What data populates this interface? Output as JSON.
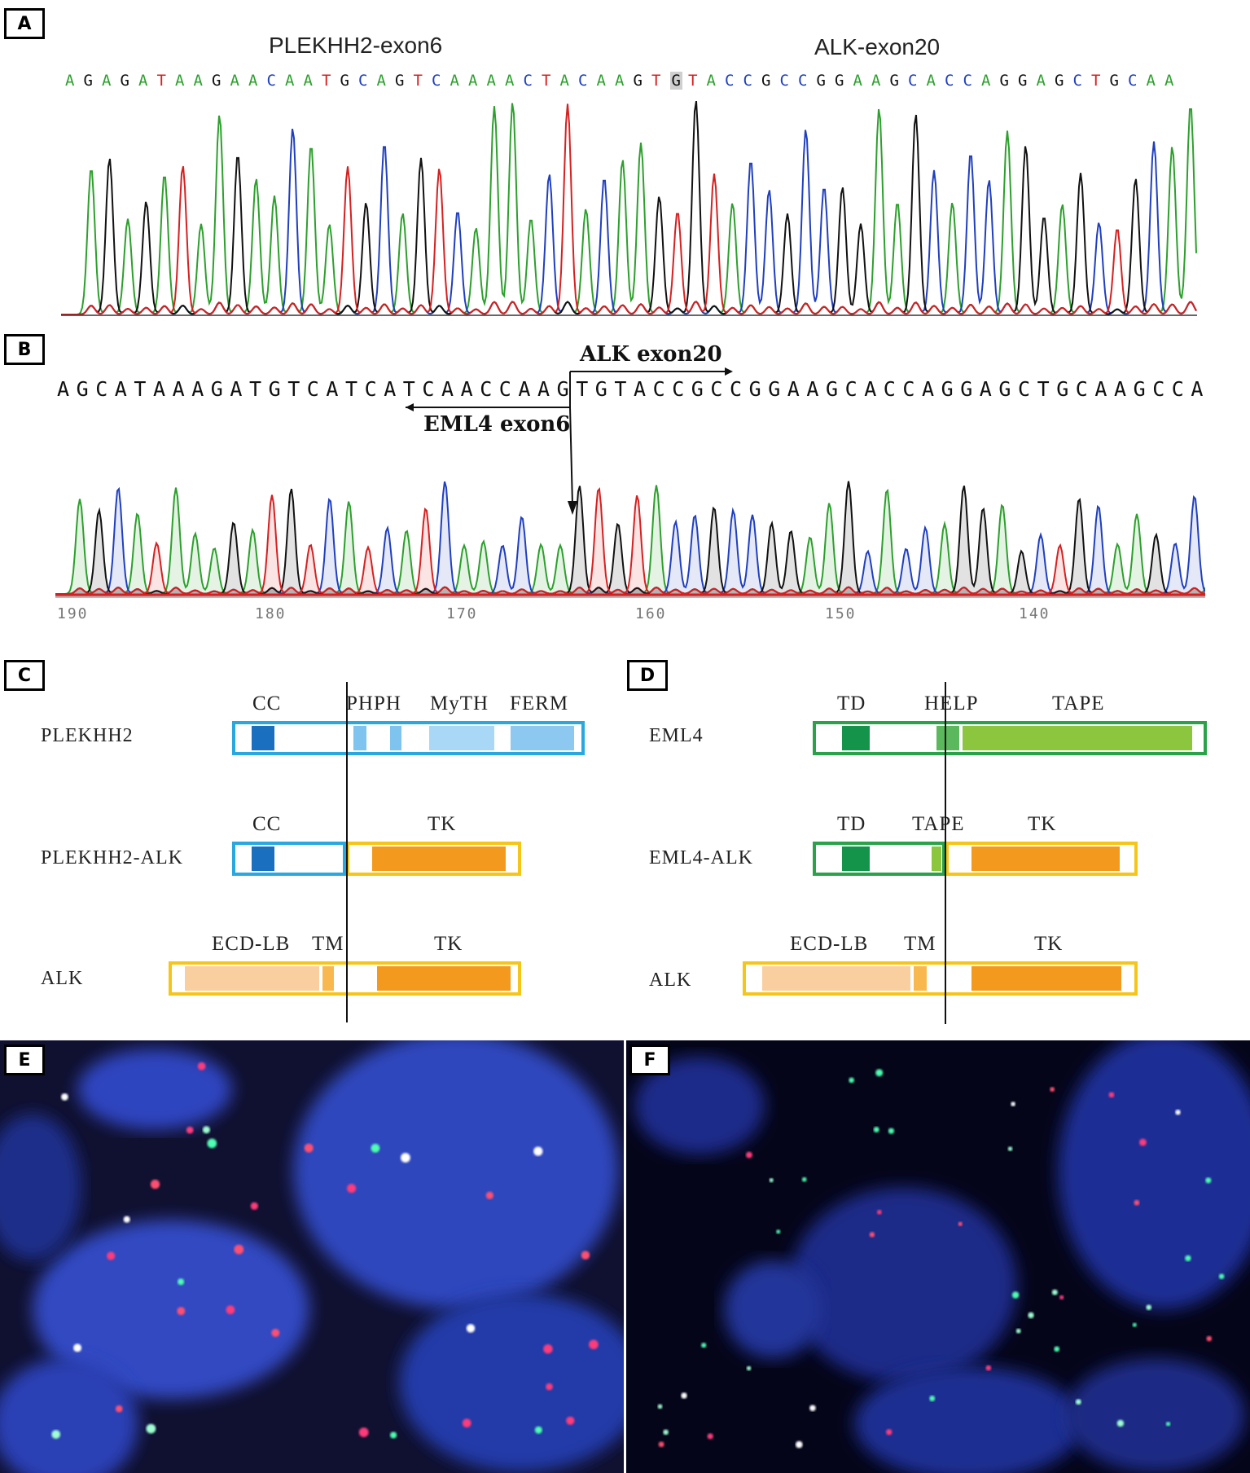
{
  "panels": {
    "A": {
      "label": "A",
      "left_title": "PLEKHH2-exon6",
      "right_title": "ALK-exon20",
      "sequence": "AGAGATAAGAACAATGCAGTCAAAACTACAAGTGTACCGCCGGAAGCACCAGGAGCTGCAA",
      "highlight_index": 33
    },
    "B": {
      "label": "B",
      "sequence": "AGCATAAAGATGTCATCATCAACCAAGTGTACCGCCGGAAGCACCAGGAGCTGCAAGCCA",
      "alk_label": "ALK exon20",
      "eml4_label": "EML4 exon6",
      "axis_ticks": [
        "190",
        "180",
        "170",
        "160",
        "150",
        "140"
      ]
    },
    "C": {
      "label": "C",
      "rows": [
        {
          "name": "PLEKHH2",
          "domains": [
            "CC",
            "PHPH",
            "MyTH",
            "FERM"
          ]
        },
        {
          "name": "PLEKHH2-ALK",
          "domains": [
            "CC",
            "TK"
          ]
        },
        {
          "name": "ALK",
          "domains": [
            "ECD-LB",
            "TM",
            "TK"
          ]
        }
      ]
    },
    "D": {
      "label": "D",
      "rows": [
        {
          "name": "EML4",
          "domains": [
            "TD",
            "HELP",
            "TAPE"
          ]
        },
        {
          "name": "EML4-ALK",
          "domains": [
            "TD",
            "TAPE",
            "TK"
          ]
        },
        {
          "name": "ALK",
          "domains": [
            "ECD-LB",
            "TM",
            "TK"
          ]
        }
      ]
    },
    "E": {
      "label": "E"
    },
    "F": {
      "label": "F"
    }
  },
  "colors": {
    "A": "#2ca02c",
    "C": "#1f3fbf",
    "G": "#111111",
    "T": "#d62020",
    "plekhh2_border": "#29a8e0",
    "plekhh2_cc": "#1a6fbf",
    "plekhh2_light": "#a8d8f5",
    "eml4_border": "#2aa24a",
    "eml4_dark": "#13944a",
    "eml4_light": "#8cc63f",
    "alk_border": "#f5c518",
    "alk_tk": "#f39a1e",
    "alk_ecd": "#f9cfa0",
    "fish_bg": "#0a0a2e",
    "nucleus": "#2c3ea8"
  }
}
